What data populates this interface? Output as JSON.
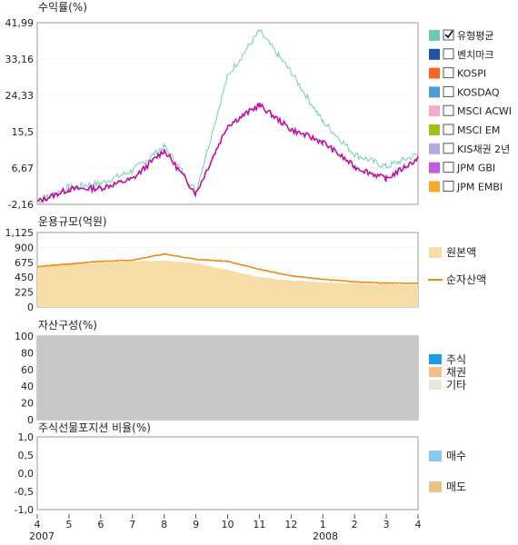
{
  "colors": {
    "fund": "#6fcfb7",
    "benchmark": "#c00da5",
    "principal": "#f6dca6",
    "net_assets": "#ee8a10",
    "equity": "#1e9bea",
    "bond": "#f7be87",
    "other": "#dcdcdc",
    "allocation_fill": "#c8c8c8",
    "buy": "#86c8f1",
    "sell": "#e9c487"
  },
  "legend1": [
    {
      "label": "유형평균",
      "color": "#6cc9b7",
      "checked": true
    },
    {
      "label": "벤치마크",
      "color": "#1f55a0",
      "checked": false
    },
    {
      "label": "KOSPI",
      "color": "#f26722",
      "checked": false
    },
    {
      "label": "KOSDAQ",
      "color": "#4f9bd6",
      "checked": false
    },
    {
      "label": "MSCI ACWI",
      "color": "#f4a9cf",
      "checked": false
    },
    {
      "label": "MSCI EM",
      "color": "#9cc31b",
      "checked": false
    },
    {
      "label": "KIS채권 2년",
      "color": "#b5a8e0",
      "checked": false
    },
    {
      "label": "JPM GBI",
      "color": "#c45ad9",
      "checked": false
    },
    {
      "label": "JPM EMBI",
      "color": "#f4aa2c",
      "checked": false
    }
  ],
  "legend2": [
    {
      "label": "원본액",
      "kind": "area",
      "color": "#f6dca6"
    },
    {
      "label": "순자산액",
      "kind": "line",
      "color": "#ee8a10"
    }
  ],
  "legend3": [
    {
      "label": "주식",
      "color": "#1e9bea"
    },
    {
      "label": "채권",
      "color": "#f7be87"
    },
    {
      "label": "기타",
      "color": "#e7e7dc"
    }
  ],
  "legend4": [
    {
      "label": "매수",
      "color": "#86c8f1"
    },
    {
      "label": "매도",
      "color": "#e9c487"
    }
  ],
  "x_axis": {
    "ticks": [
      "4",
      "5",
      "6",
      "7",
      "8",
      "9",
      "10",
      "11",
      "12",
      "1",
      "2",
      "3",
      "4"
    ],
    "years": [
      "2007",
      "2008"
    ]
  },
  "chart_data": [
    {
      "type": "line",
      "title": "수익률(%)",
      "ylim": [
        -2.16,
        41.99
      ],
      "yticks": [
        "41,99",
        "33,16",
        "24,33",
        "15,5",
        "6,67",
        "-2,16"
      ],
      "x": [
        "2007-04",
        "2007-05",
        "2007-06",
        "2007-07",
        "2007-08",
        "2007-09",
        "2007-10",
        "2007-11",
        "2007-12",
        "2008-01",
        "2008-02",
        "2008-03",
        "2008-04"
      ],
      "series": [
        {
          "name": "유형평균",
          "color": "#6fcfb7",
          "values": [
            -1.5,
            2,
            3,
            6,
            12,
            1,
            29,
            40,
            30,
            18,
            10,
            7,
            10
          ]
        },
        {
          "color": "#c00da5",
          "values": [
            -1.5,
            1.5,
            1.8,
            4,
            11,
            0.5,
            17,
            22,
            16,
            13,
            7,
            4,
            9
          ]
        }
      ]
    },
    {
      "type": "area",
      "title": "운용규모(억원)",
      "ylim": [
        0,
        1125
      ],
      "yticks": [
        "1,125",
        "900",
        "675",
        "450",
        "225",
        "0"
      ],
      "x": [
        "2007-04",
        "2007-05",
        "2007-06",
        "2007-07",
        "2007-08",
        "2007-09",
        "2007-10",
        "2007-11",
        "2007-12",
        "2008-01",
        "2008-02",
        "2008-03",
        "2008-04"
      ],
      "series": [
        {
          "name": "원본액",
          "color": "#f6dca6",
          "values": [
            610,
            640,
            670,
            690,
            700,
            660,
            560,
            450,
            400,
            370,
            355,
            345,
            335
          ]
        },
        {
          "name": "순자산액",
          "color": "#ee8a10",
          "values": [
            610,
            650,
            690,
            710,
            800,
            720,
            690,
            570,
            470,
            420,
            380,
            360,
            360
          ]
        }
      ]
    },
    {
      "type": "area",
      "title": "자산구성(%)",
      "ylim": [
        0,
        100
      ],
      "yticks": [
        "100",
        "80",
        "60",
        "40",
        "20",
        "0"
      ],
      "x": [
        "2007-04",
        "2008-04"
      ],
      "series": [
        {
          "name": "기타",
          "color": "#c8c8c8",
          "values": [
            100,
            100
          ]
        }
      ]
    },
    {
      "type": "bar",
      "title": "주식선물포지션 비율(%)",
      "ylim": [
        -1.0,
        1.0
      ],
      "yticks": [
        "1,0",
        "0,5",
        "0,0",
        "-0,5",
        "-1,0"
      ],
      "x": [],
      "series": [
        {
          "name": "매수",
          "color": "#86c8f1",
          "values": []
        },
        {
          "name": "매도",
          "color": "#e9c487",
          "values": []
        }
      ]
    }
  ]
}
